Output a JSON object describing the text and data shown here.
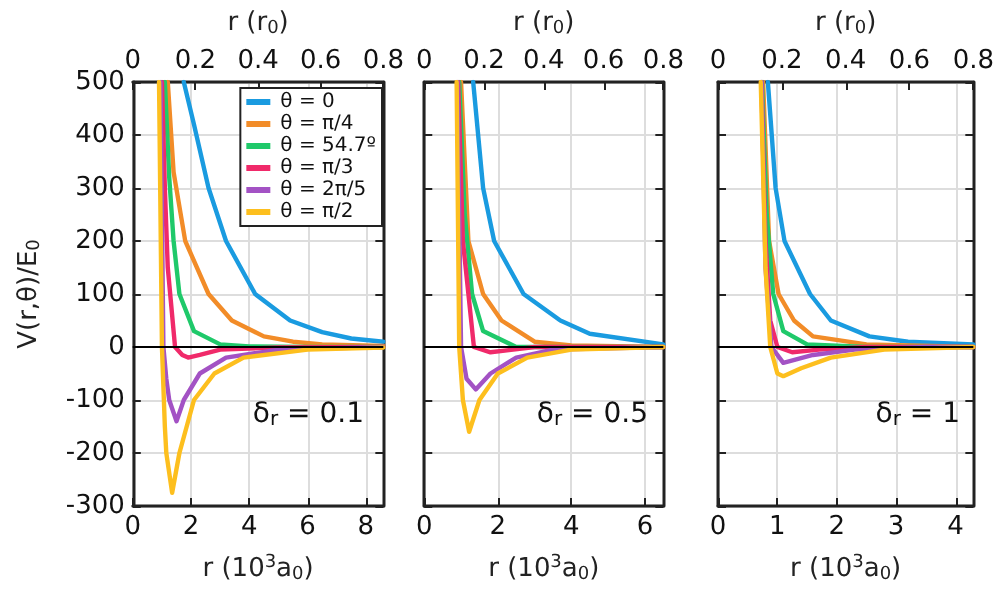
{
  "chart_data": [
    {
      "type": "line",
      "ylabel": "V(r,θ)/E$_{0}$",
      "xlabel": "r (10$^{3}$a$_{0}$)",
      "x2label": "r (r$_{0}$)",
      "xlim": [
        0,
        8.6
      ],
      "xticks": [
        0,
        2,
        4,
        6,
        8
      ],
      "x2lim": [
        0,
        0.8
      ],
      "x2ticks": [
        0,
        0.2,
        0.4,
        0.6,
        0.8
      ],
      "ylim": [
        -300,
        500
      ],
      "yticks": [
        -300,
        -200,
        -100,
        0,
        100,
        200,
        300,
        400,
        500
      ],
      "grid": true,
      "legend": "top right",
      "marker": "none",
      "line_style": "solid",
      "annotations": [
        "δ$_{r}$ = 0.1"
      ],
      "ref_lines": [
        {
          "axis": "y",
          "value": 0,
          "color": "#000000"
        }
      ],
      "series": [
        {
          "name": "θ = 0",
          "color": "#1a9be0",
          "x": [
            1.75,
            2.1,
            2.6,
            3.2,
            4.2,
            5.4,
            6.5,
            7.5,
            8.6
          ],
          "values": [
            500,
            420,
            300,
            200,
            100,
            50,
            28,
            16,
            10
          ]
        },
        {
          "name": "θ = π/4",
          "color": "#f28c28",
          "x": [
            1.2,
            1.4,
            1.8,
            2.6,
            3.4,
            4.5,
            5.5,
            6.5,
            8.6
          ],
          "values": [
            500,
            330,
            200,
            100,
            50,
            20,
            10,
            5,
            2
          ]
        },
        {
          "name": "θ = 54.7º",
          "color": "#1fc96a",
          "x": [
            1.1,
            1.25,
            1.4,
            1.6,
            2.1,
            3,
            4,
            6,
            8.6
          ],
          "values": [
            500,
            320,
            200,
            100,
            30,
            5,
            1,
            0,
            0
          ]
        },
        {
          "name": "θ = π/3",
          "color": "#f02a6a",
          "x": [
            1.0,
            1.1,
            1.2,
            1.45,
            1.7,
            1.9,
            2.3,
            3,
            5,
            8.6
          ],
          "values": [
            500,
            300,
            150,
            0,
            -15,
            -20,
            -15,
            -5,
            -1,
            0
          ]
        },
        {
          "name": "θ = 2π/5",
          "color": "#a352c4",
          "x": [
            0.95,
            1.05,
            1.15,
            1.25,
            1.5,
            1.75,
            2.3,
            3.2,
            5,
            8.6
          ],
          "values": [
            500,
            0,
            -60,
            -100,
            -140,
            -100,
            -50,
            -20,
            -5,
            0
          ]
        },
        {
          "name": "θ = π/2",
          "color": "#fdbf1e",
          "x": [
            0.9,
            1.0,
            1.1,
            1.15,
            1.35,
            1.6,
            2.1,
            2.8,
            3.8,
            6,
            8.6
          ],
          "values": [
            500,
            0,
            -150,
            -200,
            -275,
            -200,
            -100,
            -50,
            -20,
            -5,
            -1
          ]
        }
      ]
    },
    {
      "type": "line",
      "xlabel": "r (10$^{3}$a$_{0}$)",
      "x2label": "r (r$_{0}$)",
      "xlim": [
        0,
        6.5
      ],
      "xticks": [
        0,
        2,
        4,
        6
      ],
      "x2lim": [
        0,
        0.8
      ],
      "x2ticks": [
        0,
        0.2,
        0.4,
        0.6,
        0.8
      ],
      "ylim": [
        -300,
        500
      ],
      "yticks": [
        -300,
        -200,
        -100,
        0,
        100,
        200,
        300,
        400,
        500
      ],
      "tick_labels": "x",
      "grid": true,
      "marker": "none",
      "line_style": "solid",
      "annotations": [
        "δ$_{r}$ = 0.5"
      ],
      "ref_lines": [
        {
          "axis": "y",
          "value": 0,
          "color": "#000000"
        }
      ],
      "series": [
        {
          "color": "#1a9be0",
          "x": [
            1.33,
            1.6,
            1.9,
            2.7,
            3.7,
            4.5,
            6.5
          ],
          "values": [
            500,
            300,
            200,
            100,
            50,
            25,
            5
          ]
        },
        {
          "color": "#f28c28",
          "x": [
            1.0,
            1.2,
            1.6,
            2.1,
            3.0,
            4,
            6.5
          ],
          "values": [
            500,
            200,
            100,
            50,
            10,
            3,
            0
          ]
        },
        {
          "color": "#1fc96a",
          "x": [
            0.95,
            1.1,
            1.3,
            1.6,
            2.5,
            6.5
          ],
          "values": [
            500,
            250,
            100,
            30,
            0,
            0
          ]
        },
        {
          "color": "#f02a6a",
          "x": [
            0.92,
            1.05,
            1.35,
            1.8,
            2.3,
            3,
            6.5
          ],
          "values": [
            500,
            200,
            0,
            -10,
            -6,
            0,
            0
          ]
        },
        {
          "color": "#a352c4",
          "x": [
            0.9,
            1.0,
            1.15,
            1.4,
            1.8,
            2.5,
            3.5,
            6.5
          ],
          "values": [
            500,
            0,
            -60,
            -80,
            -50,
            -20,
            -5,
            0
          ]
        },
        {
          "color": "#fdbf1e",
          "x": [
            0.88,
            0.95,
            1.05,
            1.22,
            1.5,
            2,
            2.8,
            4,
            6.5
          ],
          "values": [
            500,
            0,
            -100,
            -160,
            -100,
            -50,
            -20,
            -5,
            0
          ]
        }
      ]
    },
    {
      "type": "line",
      "xlabel": "r (10$^{3}$a$_{0}$)",
      "x2label": "r (r$_{0}$)",
      "xlim": [
        0,
        4.3
      ],
      "xticks": [
        0,
        1,
        2,
        3,
        4
      ],
      "x2lim": [
        0,
        0.8
      ],
      "x2ticks": [
        0,
        0.2,
        0.4,
        0.6,
        0.8
      ],
      "ylim": [
        -300,
        500
      ],
      "yticks": [
        -300,
        -200,
        -100,
        0,
        100,
        200,
        300,
        400,
        500
      ],
      "tick_labels": "x",
      "grid": true,
      "marker": "none",
      "line_style": "solid",
      "annotations": [
        "δ$_{r}$ = 1"
      ],
      "ref_lines": [
        {
          "axis": "y",
          "value": 0,
          "color": "#000000"
        }
      ],
      "series": [
        {
          "color": "#1a9be0",
          "x": [
            0.84,
            0.97,
            1.12,
            1.55,
            1.9,
            2.55,
            3.2,
            4.3
          ],
          "values": [
            500,
            300,
            200,
            100,
            50,
            20,
            10,
            5
          ]
        },
        {
          "color": "#f28c28",
          "x": [
            0.76,
            0.86,
            1.02,
            1.28,
            1.6,
            2.5,
            4.3
          ],
          "values": [
            500,
            200,
            100,
            50,
            20,
            5,
            0
          ]
        },
        {
          "color": "#1fc96a",
          "x": [
            0.74,
            0.82,
            0.93,
            1.1,
            1.5,
            2.5,
            4.3
          ],
          "values": [
            500,
            250,
            100,
            30,
            5,
            0,
            0
          ]
        },
        {
          "color": "#f02a6a",
          "x": [
            0.73,
            0.8,
            0.88,
            1.0,
            1.25,
            1.7,
            2.5,
            4.3
          ],
          "values": [
            500,
            200,
            50,
            0,
            -10,
            -5,
            0,
            0
          ]
        },
        {
          "color": "#a352c4",
          "x": [
            0.735,
            0.8,
            0.9,
            1.1,
            1.6,
            2.3,
            3.5,
            4.3
          ],
          "values": [
            500,
            150,
            0,
            -30,
            -15,
            -5,
            0,
            0
          ]
        },
        {
          "color": "#fdbf1e",
          "x": [
            0.72,
            0.8,
            0.88,
            1.0,
            1.1,
            1.4,
            1.9,
            2.8,
            4.3
          ],
          "values": [
            500,
            150,
            0,
            -50,
            -55,
            -40,
            -20,
            -5,
            0
          ]
        }
      ]
    }
  ]
}
